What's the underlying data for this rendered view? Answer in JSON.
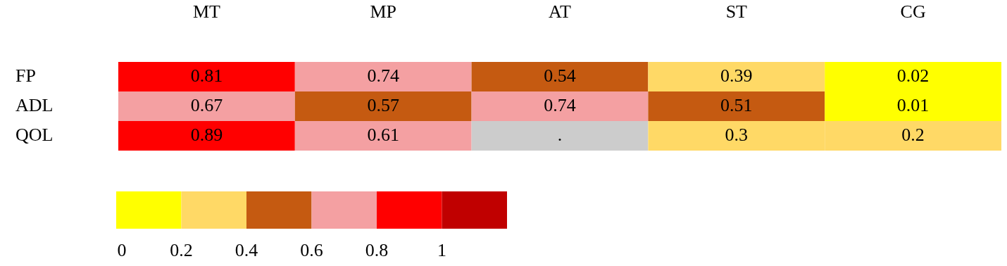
{
  "chart_data": {
    "type": "heatmap",
    "categories": [
      "MT",
      "MP",
      "AT",
      "ST",
      "CG"
    ],
    "y_categories": [
      "FP",
      "ADL",
      "QOL"
    ],
    "cells": [
      [
        0.81,
        0.74,
        0.54,
        0.39,
        0.02
      ],
      [
        0.67,
        0.57,
        0.74,
        0.51,
        0.01
      ],
      [
        0.89,
        0.61,
        null,
        0.3,
        0.2
      ]
    ],
    "cell_labels": [
      [
        "0.81",
        "0.74",
        "0.54",
        "0.39",
        "0.02"
      ],
      [
        "0.67",
        "0.57",
        "0.74",
        "0.51",
        "0.01"
      ],
      [
        "0.89",
        "0.61",
        ".",
        "0.3",
        "0.2"
      ]
    ],
    "colors": [
      "#ffff00",
      "#ffd966",
      "#c55a11",
      "#f4a0a2",
      "#ff0000",
      "#c00000"
    ],
    "clim": [
      0,
      1.2
    ],
    "cticks": [
      0,
      0.2,
      0.4,
      0.6,
      0.8,
      1
    ]
  }
}
